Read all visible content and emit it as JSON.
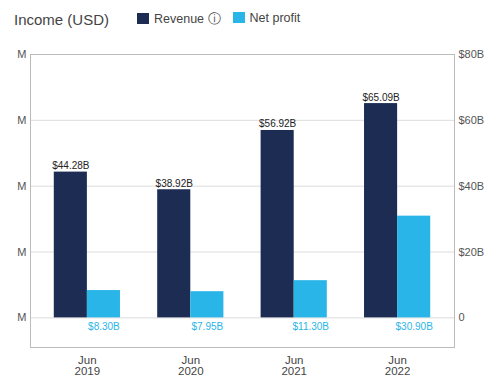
{
  "chart_data": {
    "type": "bar",
    "title": "Income (USD)",
    "categories": [
      "Jun\n2019",
      "Jun\n2020",
      "Jun\n2021",
      "Jun\n2022"
    ],
    "series": [
      {
        "name": "Revenue ⓘ",
        "color": "#1c2c52",
        "values": [
          44.28,
          38.92,
          56.92,
          65.09
        ],
        "value_labels": [
          "$44.28B",
          "$38.92B",
          "$56.92B",
          "$65.09B"
        ]
      },
      {
        "name": "Net profit",
        "color": "#29b5e8",
        "values": [
          8.3,
          7.95,
          11.3,
          30.9
        ],
        "value_labels": [
          "$8.30B",
          "$7.95B",
          "$11.30B",
          "$30.90B"
        ]
      }
    ],
    "ylim": [
      -9,
      80
    ],
    "yticks": [
      {
        "value": 0,
        "label": "M"
      },
      {
        "value": 20,
        "label": "M"
      },
      {
        "value": 40,
        "label": "M"
      },
      {
        "value": 60,
        "label": "M"
      },
      {
        "value": 80,
        "label": "M"
      }
    ],
    "y2lim": [
      -9,
      80
    ],
    "y2ticks": [
      0,
      {
        "value": 20,
        "label": "$20B"
      },
      {
        "value": 40,
        "label": "$40B"
      },
      {
        "value": 60,
        "label": "$60B"
      },
      {
        "value": 80,
        "label": "$80B"
      }
    ],
    "grid": true,
    "legend": "top",
    "data_labels": true
  }
}
